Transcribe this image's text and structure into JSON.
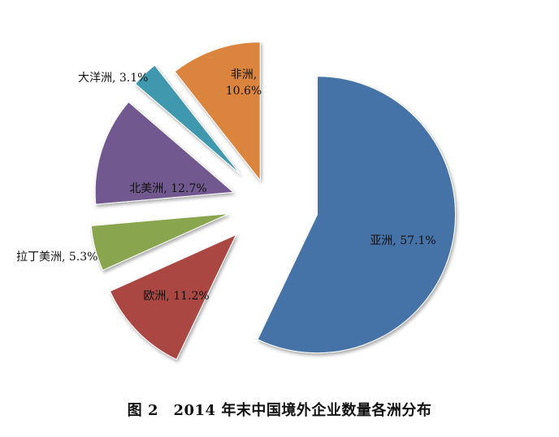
{
  "chart_data": {
    "type": "pie",
    "exploded": true,
    "categories": [
      "亚洲",
      "欧洲",
      "拉丁美洲",
      "北美洲",
      "大洋洲",
      "非洲"
    ],
    "values": [
      57.1,
      11.2,
      5.3,
      12.7,
      3.1,
      10.6
    ],
    "labels": [
      "亚洲, 57.1%",
      "欧洲, 11.2%",
      "拉丁美洲, 5.3%",
      "北美洲, 12.7%",
      "大洋洲, 3.1%",
      "非洲, 10.6%"
    ],
    "colors": [
      "#4572a7",
      "#aa4643",
      "#89a54e",
      "#71588f",
      "#4198af",
      "#db843d"
    ]
  },
  "caption": "图 2　2014 年末中国境外企业数量各洲分布"
}
